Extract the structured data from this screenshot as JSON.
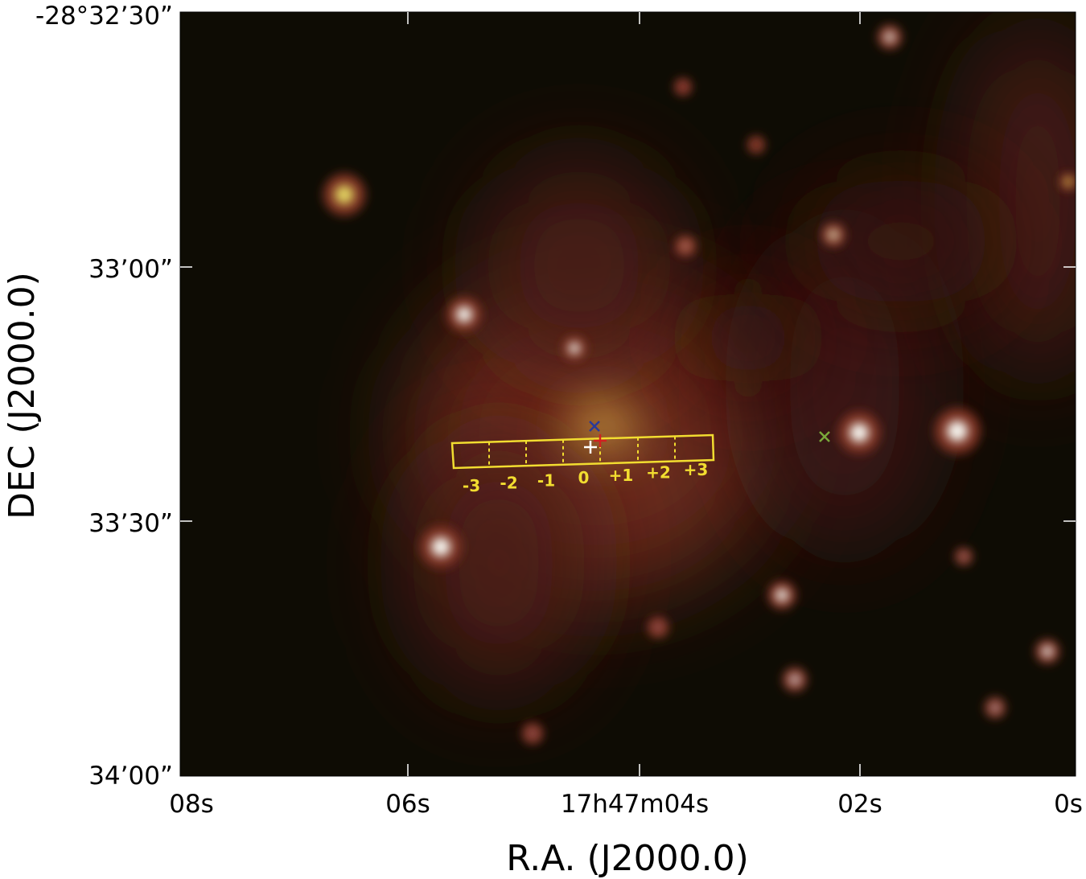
{
  "x_axis": {
    "title": "R.A. (J2000.0)",
    "ticks": [
      "08s",
      "06s",
      "17h47m04s",
      "02s",
      "0s"
    ]
  },
  "y_axis": {
    "title": "DEC (J2000.0)",
    "ticks": [
      "-28°32’30”",
      "33’00”",
      "33’30”",
      "34’00”"
    ]
  },
  "slit_labels": [
    "-3",
    "-2",
    "-1",
    "0",
    "+1",
    "+2",
    "+3"
  ]
}
